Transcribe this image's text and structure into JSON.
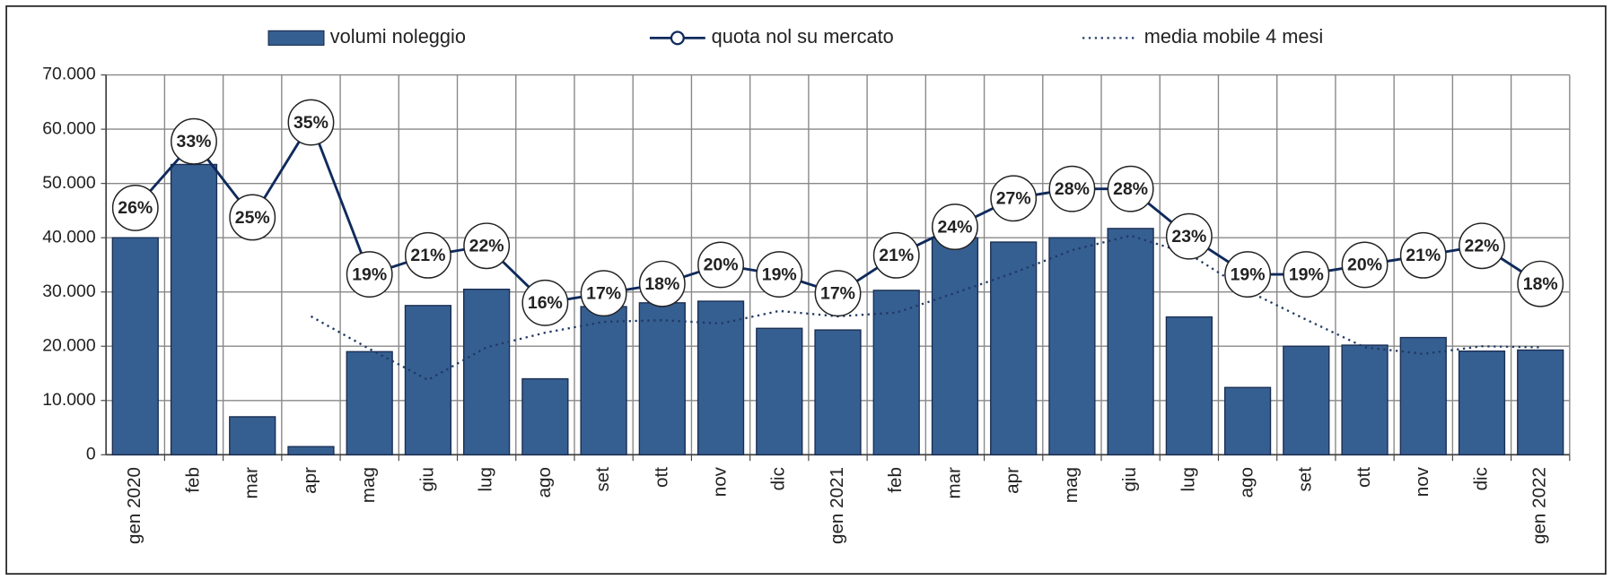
{
  "chart_data": {
    "type": "bar",
    "categories": [
      "gen 2020",
      "feb",
      "mar",
      "apr",
      "mag",
      "giu",
      "lug",
      "ago",
      "set",
      "ott",
      "nov",
      "dic",
      "gen 2021",
      "feb",
      "mar",
      "apr",
      "mag",
      "giu",
      "lug",
      "ago",
      "set",
      "ott",
      "nov",
      "dic",
      "gen 2022"
    ],
    "series": [
      {
        "name": "volumi noleggio",
        "type": "bar",
        "color": "#365f91",
        "values": [
          40000,
          53500,
          7000,
          1500,
          19000,
          27500,
          30500,
          14000,
          27300,
          28000,
          28300,
          23300,
          23000,
          30300,
          40000,
          39200,
          40000,
          41700,
          25400,
          12400,
          20000,
          20200,
          21600,
          19100,
          19300
        ]
      },
      {
        "name": "quota nol su mercato",
        "type": "line",
        "axis": "y2",
        "color": "#0f2a5c",
        "values": [
          26,
          33,
          25,
          35,
          19,
          21,
          22,
          16,
          17,
          18,
          20,
          19,
          17,
          21,
          24,
          27,
          28,
          28,
          23,
          19,
          19,
          20,
          21,
          22,
          18
        ],
        "value_labels": [
          "26%",
          "33%",
          "25%",
          "35%",
          "19%",
          "21%",
          "22%",
          "16%",
          "17%",
          "18%",
          "20%",
          "19%",
          "17%",
          "21%",
          "24%",
          "27%",
          "28%",
          "28%",
          "23%",
          "19%",
          "19%",
          "20%",
          "21%",
          "22%",
          "18%"
        ]
      },
      {
        "name": "media mobile 4 mesi",
        "type": "line",
        "dash": "dotted",
        "color": "#1f3864",
        "values": [
          null,
          null,
          null,
          25500,
          19500,
          13800,
          19800,
          22500,
          24500,
          24800,
          24200,
          26500,
          25500,
          26200,
          29800,
          33500,
          37700,
          40400,
          37000,
          30200,
          24900,
          19800,
          18600,
          20000,
          19800
        ]
      }
    ],
    "ylim": [
      0,
      70000
    ],
    "yticks": [
      0,
      {
        "value": 10000,
        "label": "10.000"
      },
      {
        "value": 20000,
        "label": "20.000"
      },
      {
        "value": 30000,
        "label": "30.000"
      },
      {
        "value": 40000,
        "label": "40.000"
      },
      {
        "value": 50000,
        "label": "50.000"
      },
      {
        "value": 60000,
        "label": "60.000"
      },
      {
        "value": 70000,
        "label": "70.000"
      }
    ],
    "y2lim": [
      0,
      40
    ],
    "grid": true,
    "legend": "top"
  }
}
